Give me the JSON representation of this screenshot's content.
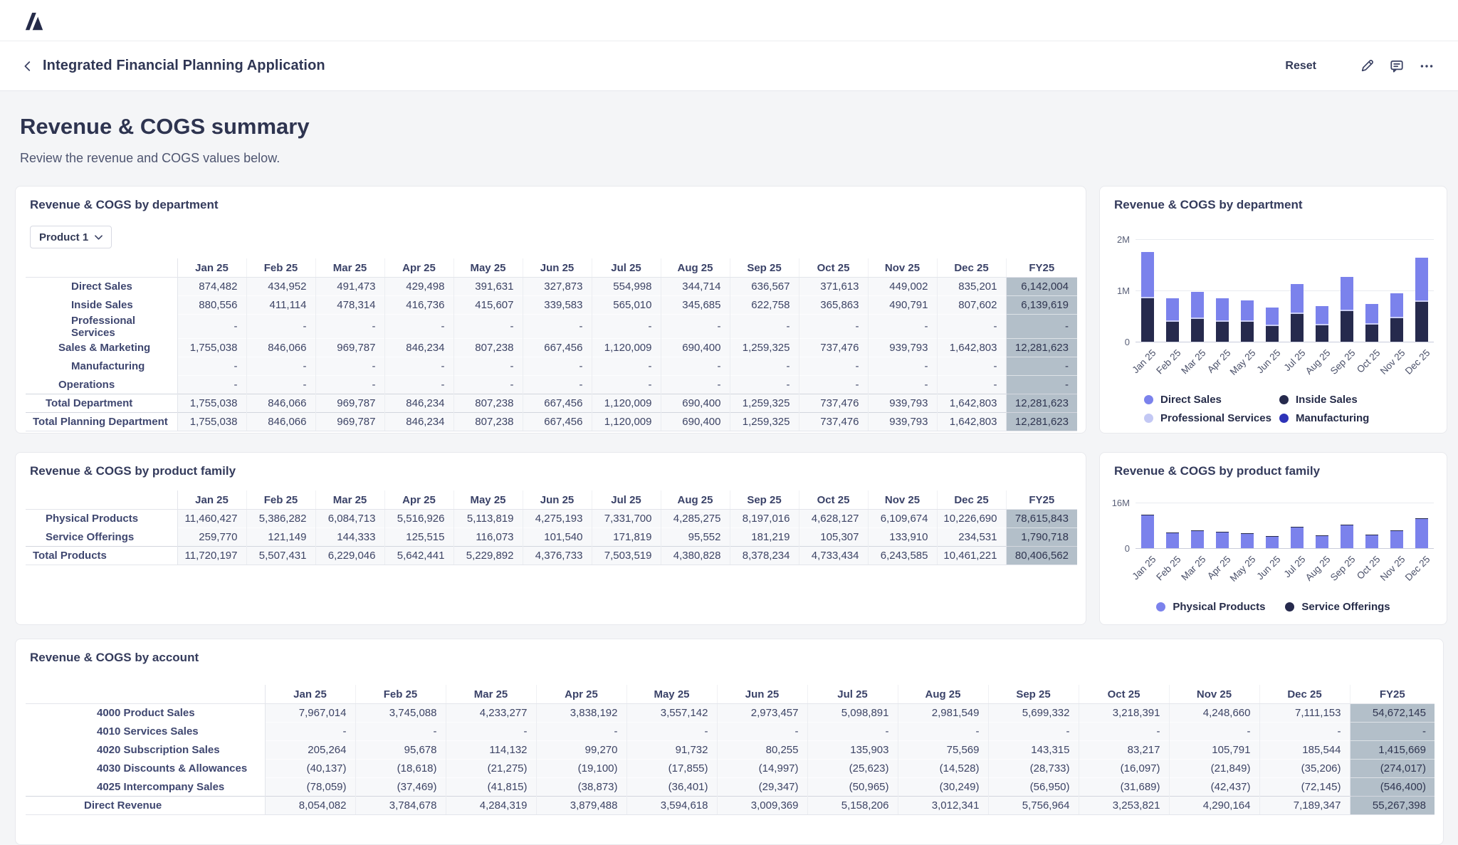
{
  "logo": {
    "name": "anaplan-logo",
    "color": "#252B49"
  },
  "appbar": {
    "title": "Integrated Financial Planning Application",
    "reset_label": "Reset",
    "icons": [
      "edit-icon",
      "comment-icon",
      "more-options-icon"
    ]
  },
  "page": {
    "title": "Revenue & COGS summary",
    "subtitle": "Review the revenue and COGS values below."
  },
  "months": [
    "Jan 25",
    "Feb 25",
    "Mar 25",
    "Apr 25",
    "May 25",
    "Jun 25",
    "Jul 25",
    "Aug 25",
    "Sep 25",
    "Oct 25",
    "Nov 25",
    "Dec 25"
  ],
  "fy_label": "FY25",
  "colors": {
    "purple": "#7B82EC",
    "dark_navy": "#262A4D",
    "lavender": "#C3C8F4",
    "royal_blue": "#2E33B8",
    "fy_highlight": "#B3BFC9"
  },
  "dept_table": {
    "title": "Revenue & COGS by department",
    "dropdown_value": "Product 1",
    "rows": [
      {
        "label": "Direct Sales",
        "level": 3,
        "values": [
          "874,482",
          "434,952",
          "491,473",
          "429,498",
          "391,631",
          "327,873",
          "554,998",
          "344,714",
          "636,567",
          "371,613",
          "449,002",
          "835,201"
        ],
        "fy": "6,142,004"
      },
      {
        "label": "Inside Sales",
        "level": 3,
        "values": [
          "880,556",
          "411,114",
          "478,314",
          "416,736",
          "415,607",
          "339,583",
          "565,010",
          "345,685",
          "622,758",
          "365,863",
          "490,791",
          "807,602"
        ],
        "fy": "6,139,619"
      },
      {
        "label": "Professional Services",
        "level": 3,
        "values": [
          "-",
          "-",
          "-",
          "-",
          "-",
          "-",
          "-",
          "-",
          "-",
          "-",
          "-",
          "-"
        ],
        "fy": "-"
      },
      {
        "label": "Sales & Marketing",
        "level": 2,
        "values": [
          "1,755,038",
          "846,066",
          "969,787",
          "846,234",
          "807,238",
          "667,456",
          "1,120,009",
          "690,400",
          "1,259,325",
          "737,476",
          "939,793",
          "1,642,803"
        ],
        "fy": "12,281,623"
      },
      {
        "label": "Manufacturing",
        "level": 3,
        "values": [
          "-",
          "-",
          "-",
          "-",
          "-",
          "-",
          "-",
          "-",
          "-",
          "-",
          "-",
          "-"
        ],
        "fy": "-"
      },
      {
        "label": "Operations",
        "level": 2,
        "values": [
          "-",
          "-",
          "-",
          "-",
          "-",
          "-",
          "-",
          "-",
          "-",
          "-",
          "-",
          "-"
        ],
        "fy": "-"
      },
      {
        "label": "Total Department",
        "level": 1,
        "total": true,
        "values": [
          "1,755,038",
          "846,066",
          "969,787",
          "846,234",
          "807,238",
          "667,456",
          "1,120,009",
          "690,400",
          "1,259,325",
          "737,476",
          "939,793",
          "1,642,803"
        ],
        "fy": "12,281,623"
      },
      {
        "label": "Total Planning Department",
        "level": 0,
        "total": true,
        "values": [
          "1,755,038",
          "846,066",
          "969,787",
          "846,234",
          "807,238",
          "667,456",
          "1,120,009",
          "690,400",
          "1,259,325",
          "737,476",
          "939,793",
          "1,642,803"
        ],
        "fy": "12,281,623"
      }
    ]
  },
  "dept_chart": {
    "type": "bar",
    "title": "Revenue & COGS by department",
    "ymax": 2000000,
    "divider": true,
    "yticks": [
      {
        "label": "2M",
        "value": 2000000
      },
      {
        "label": "1M",
        "value": 1000000
      },
      {
        "label": "0",
        "value": 0
      }
    ],
    "categories": [
      "Jan 25",
      "Feb 25",
      "Mar 25",
      "Apr 25",
      "May 25",
      "Jun 25",
      "Jul 25",
      "Aug 25",
      "Sep 25",
      "Oct 25",
      "Nov 25",
      "Dec 25"
    ],
    "series": [
      {
        "name": "Inside Sales",
        "color": "#262A4D",
        "values": [
          880556,
          411114,
          478314,
          416736,
          415607,
          339583,
          565010,
          345685,
          622758,
          365863,
          490791,
          807602
        ]
      },
      {
        "name": "Direct Sales",
        "color": "#7B82EC",
        "values": [
          874482,
          434952,
          491473,
          429498,
          391631,
          327873,
          554998,
          344714,
          636567,
          371613,
          449002,
          835201
        ]
      }
    ],
    "legend": [
      {
        "label": "Direct Sales",
        "color": "#7B82EC"
      },
      {
        "label": "Inside Sales",
        "color": "#262A4D"
      },
      {
        "label": "Professional Services",
        "color": "#C3C8F4"
      },
      {
        "label": "Manufacturing",
        "color": "#2E33B8"
      }
    ]
  },
  "pf_table": {
    "title": "Revenue & COGS by product family",
    "rows": [
      {
        "label": "Physical Products",
        "level": 1,
        "values": [
          "11,460,427",
          "5,386,282",
          "6,084,713",
          "5,516,926",
          "5,113,819",
          "4,275,193",
          "7,331,700",
          "4,285,275",
          "8,197,016",
          "4,628,127",
          "6,109,674",
          "10,226,690"
        ],
        "fy": "78,615,843"
      },
      {
        "label": "Service Offerings",
        "level": 1,
        "values": [
          "259,770",
          "121,149",
          "144,333",
          "125,515",
          "116,073",
          "101,540",
          "171,819",
          "95,552",
          "181,219",
          "105,307",
          "133,910",
          "234,531"
        ],
        "fy": "1,790,718"
      },
      {
        "label": "Total Products",
        "level": 0,
        "total": true,
        "values": [
          "11,720,197",
          "5,507,431",
          "6,229,046",
          "5,642,441",
          "5,229,892",
          "4,376,733",
          "7,503,519",
          "4,380,828",
          "8,378,234",
          "4,733,434",
          "6,243,585",
          "10,461,221"
        ],
        "fy": "80,406,562"
      }
    ]
  },
  "pf_chart": {
    "type": "bar",
    "title": "Revenue & COGS by product family",
    "ymax": 16000000,
    "divider": false,
    "yticks": [
      {
        "label": "16M",
        "value": 16000000
      },
      {
        "label": "0",
        "value": 0
      }
    ],
    "categories": [
      "Jan 25",
      "Feb 25",
      "Mar 25",
      "Apr 25",
      "May 25",
      "Jun 25",
      "Jul 25",
      "Aug 25",
      "Sep 25",
      "Oct 25",
      "Nov 25",
      "Dec 25"
    ],
    "series": [
      {
        "name": "Physical Products",
        "color": "#7B82EC",
        "values": [
          11460427,
          5386282,
          6084713,
          5516926,
          5113819,
          4275193,
          7331700,
          4285275,
          8197016,
          4628127,
          6109674,
          10226690
        ]
      },
      {
        "name": "Service Offerings",
        "color": "#262A4D",
        "values": [
          259770,
          121149,
          144333,
          125515,
          116073,
          101540,
          171819,
          95552,
          181219,
          105307,
          133910,
          234531
        ]
      }
    ],
    "legend": [
      {
        "label": "Physical Products",
        "color": "#7B82EC"
      },
      {
        "label": "Service Offerings",
        "color": "#262A4D"
      }
    ]
  },
  "acct_table": {
    "title": "Revenue & COGS by account",
    "rows": [
      {
        "label": "4000 Product Sales",
        "level": 5,
        "values": [
          "7,967,014",
          "3,745,088",
          "4,233,277",
          "3,838,192",
          "3,557,142",
          "2,973,457",
          "5,098,891",
          "2,981,549",
          "5,699,332",
          "3,218,391",
          "4,248,660",
          "7,111,153"
        ],
        "fy": "54,672,145"
      },
      {
        "label": "4010 Services Sales",
        "level": 5,
        "values": [
          "-",
          "-",
          "-",
          "-",
          "-",
          "-",
          "-",
          "-",
          "-",
          "-",
          "-",
          "-"
        ],
        "fy": "-"
      },
      {
        "label": "4020 Subscription Sales",
        "level": 5,
        "values": [
          "205,264",
          "95,678",
          "114,132",
          "99,270",
          "91,732",
          "80,255",
          "135,903",
          "75,569",
          "143,315",
          "83,217",
          "105,791",
          "185,544"
        ],
        "fy": "1,415,669"
      },
      {
        "label": "4030 Discounts & Allowances",
        "level": 5,
        "values": [
          "(40,137)",
          "(18,618)",
          "(21,275)",
          "(19,100)",
          "(17,855)",
          "(14,997)",
          "(25,623)",
          "(14,528)",
          "(28,733)",
          "(16,097)",
          "(21,849)",
          "(35,206)"
        ],
        "fy": "(274,017)"
      },
      {
        "label": "4025 Intercompany Sales",
        "level": 5,
        "values": [
          "(78,059)",
          "(37,469)",
          "(41,815)",
          "(38,873)",
          "(36,401)",
          "(29,347)",
          "(50,965)",
          "(30,249)",
          "(56,950)",
          "(31,689)",
          "(42,437)",
          "(72,145)"
        ],
        "fy": "(546,400)"
      },
      {
        "label": "Direct Revenue",
        "level": 4,
        "total": true,
        "values": [
          "8,054,082",
          "3,784,678",
          "4,284,319",
          "3,879,488",
          "3,594,618",
          "3,009,369",
          "5,158,206",
          "3,012,341",
          "5,756,964",
          "3,253,821",
          "4,290,164",
          "7,189,347"
        ],
        "fy": "55,267,398"
      }
    ]
  }
}
